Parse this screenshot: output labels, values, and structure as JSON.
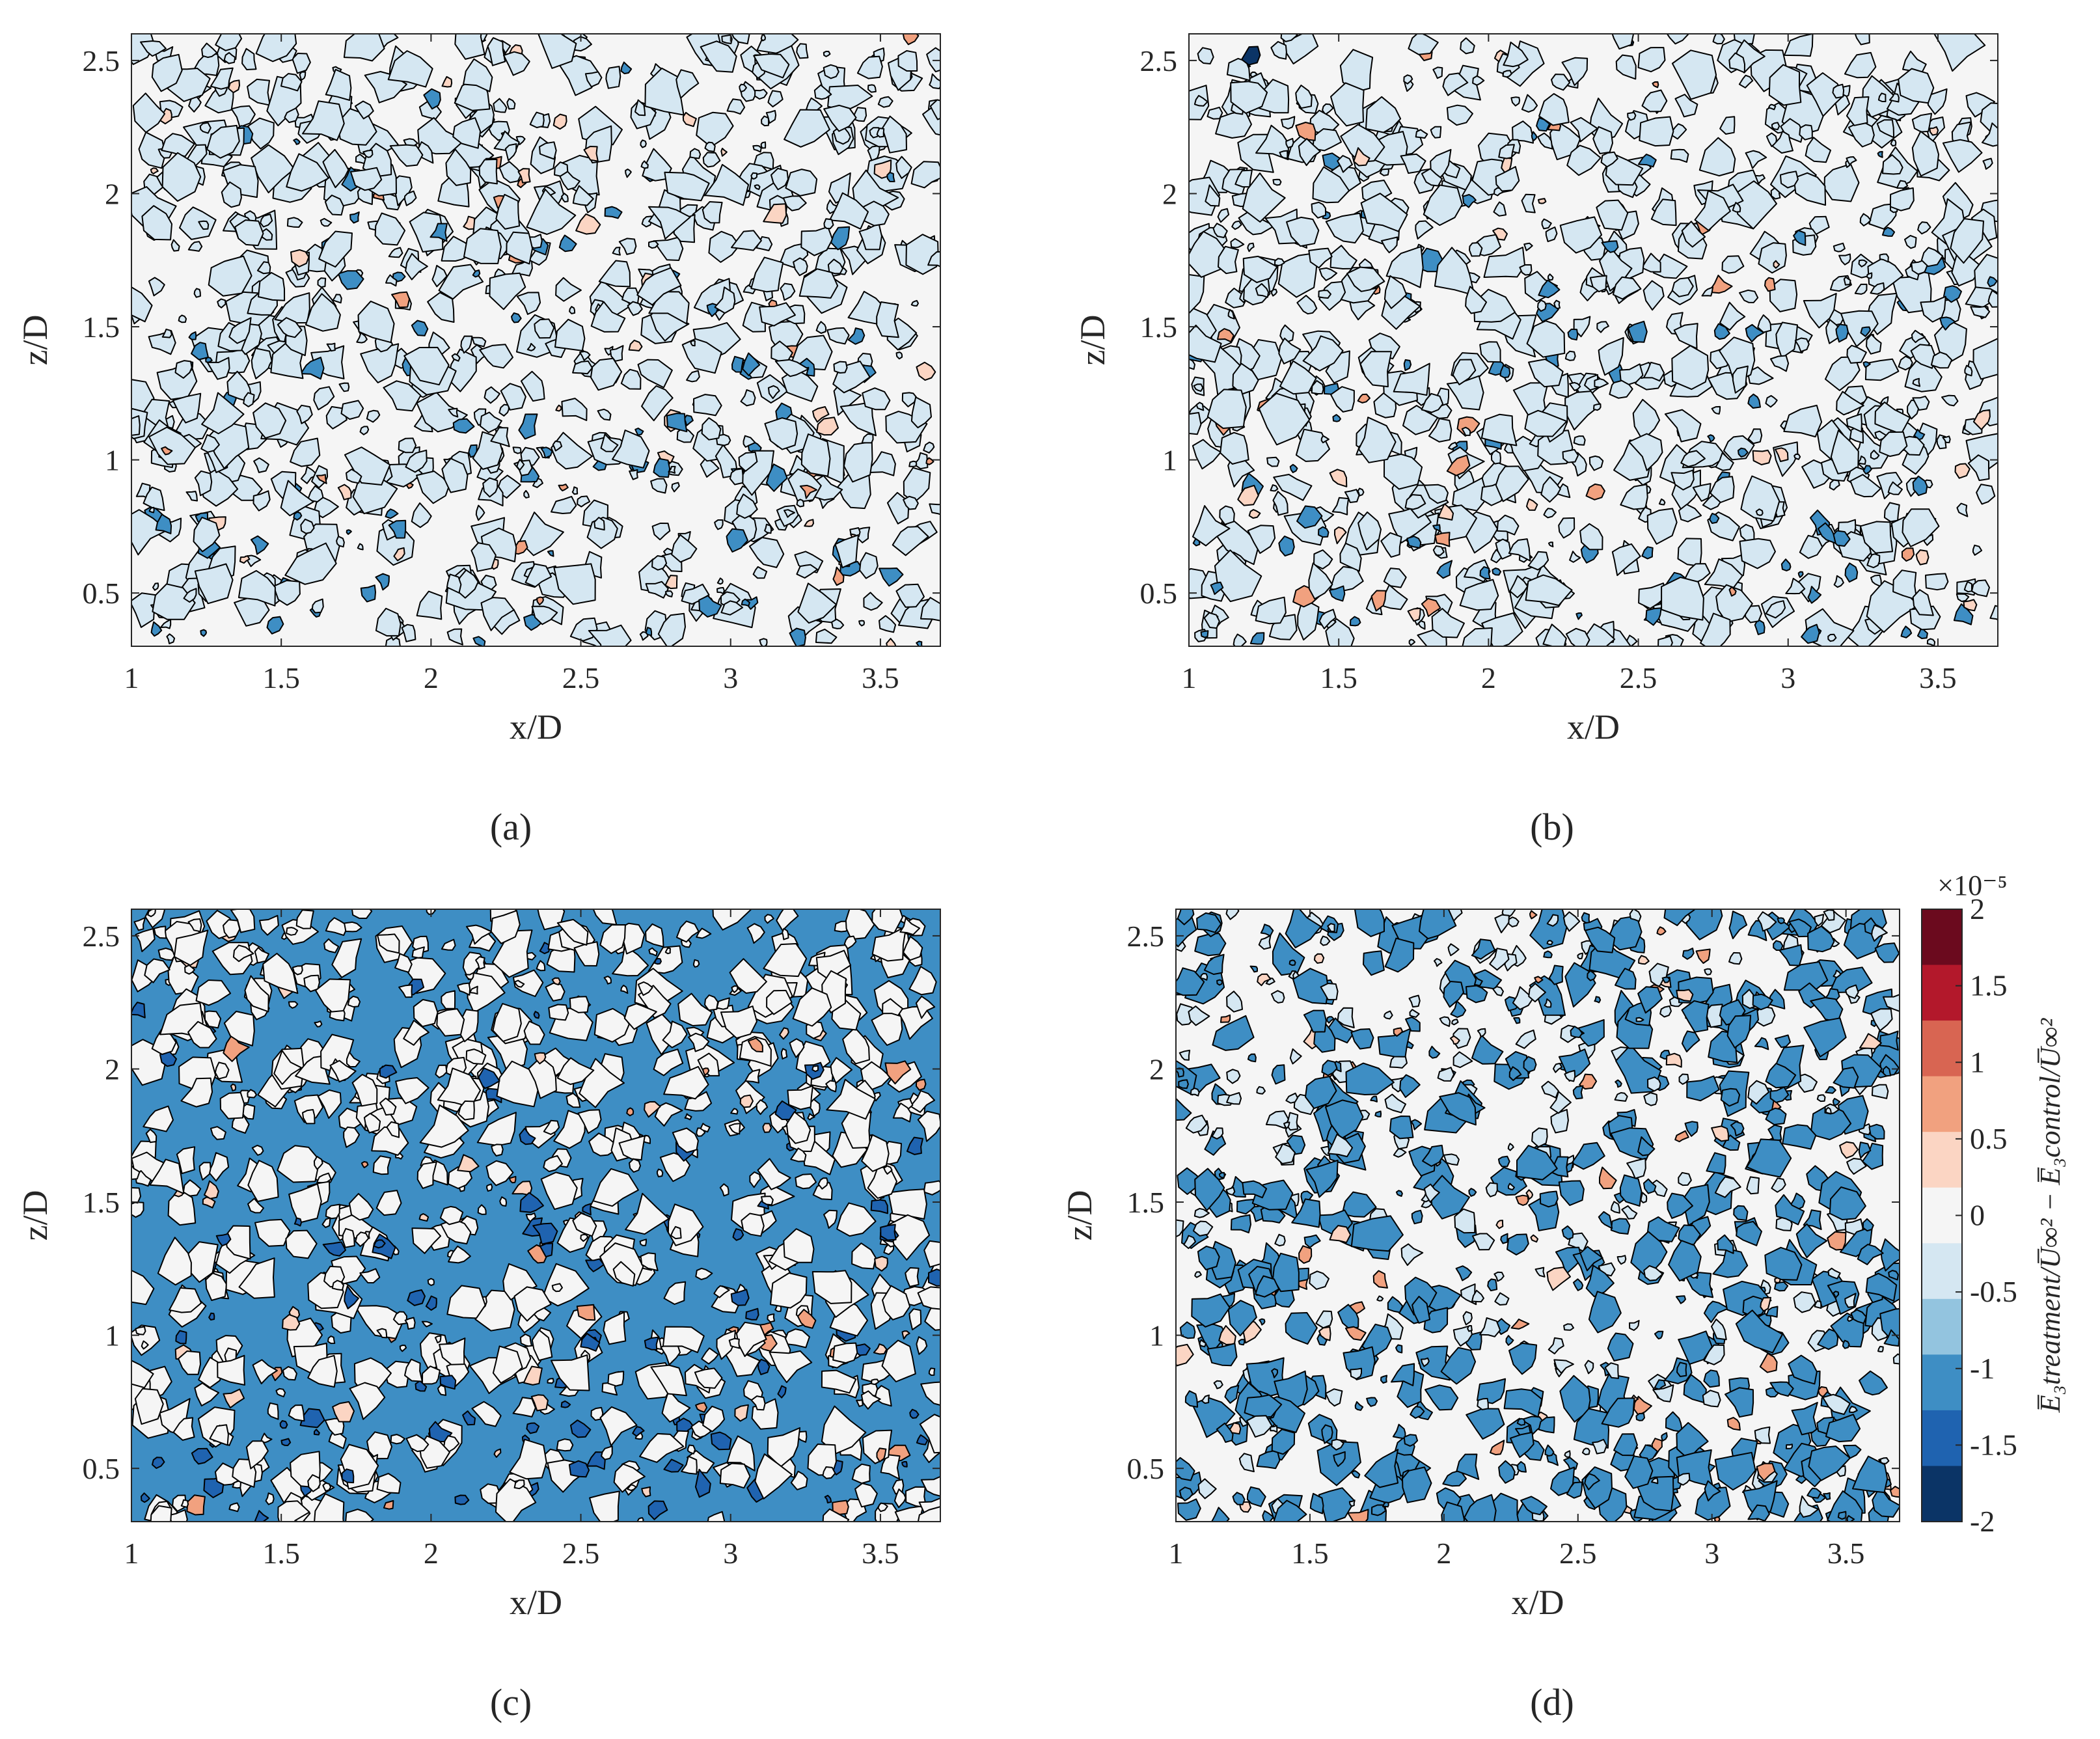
{
  "figure": {
    "panel_labels": [
      "(a)",
      "(b)",
      "(c)",
      "(d)"
    ]
  },
  "colormap": {
    "levels": [
      -2,
      -1.5,
      -1,
      -0.5,
      0,
      0.5,
      1,
      1.5,
      2
    ],
    "colors": [
      "#0b3466",
      "#1f63b0",
      "#3e8ec4",
      "#93c4df",
      "#d5e7f2",
      "#f5f5f5",
      "#fbd5c3",
      "#f1a17f",
      "#d86552",
      "#b3182b",
      "#6b0a1e"
    ],
    "contour_color": "#000000"
  },
  "colorbar": {
    "ticks": [
      "2",
      "1.5",
      "1",
      "0.5",
      "0",
      "-0.5",
      "-1",
      "-1.5",
      "-2"
    ],
    "exponent": "×10⁻⁵",
    "label": "E̅₃treatment/U̅∞² − E̅₃control/U̅∞²"
  },
  "chart_data": [
    {
      "type": "heatmap",
      "panel": "(a)",
      "xlabel": "x/D",
      "ylabel": "z/D",
      "xlim": [
        1,
        3.7
      ],
      "ylim": [
        0.3,
        2.6
      ],
      "xticks": [
        1,
        1.5,
        2,
        2.5,
        3,
        3.5
      ],
      "yticks": [
        0.5,
        1,
        1.5,
        2,
        2.5
      ],
      "value_range": [
        -2e-05,
        2e-05
      ],
      "description_values": {
        "dominant_level": 0,
        "secondary_level": -0.5
      }
    },
    {
      "type": "heatmap",
      "panel": "(b)",
      "xlabel": "x/D",
      "ylabel": "z/D",
      "xlim": [
        1,
        3.7
      ],
      "ylim": [
        0.3,
        2.6
      ],
      "xticks": [
        1,
        1.5,
        2,
        2.5,
        3,
        3.5
      ],
      "yticks": [
        0.5,
        1,
        1.5,
        2,
        2.5
      ],
      "value_range": [
        -2e-05,
        2e-05
      ],
      "description_values": {
        "dominant_level": 0,
        "secondary_level": -0.5
      }
    },
    {
      "type": "heatmap",
      "panel": "(c)",
      "xlabel": "x/D",
      "ylabel": "z/D",
      "xlim": [
        1,
        3.7
      ],
      "ylim": [
        0.3,
        2.6
      ],
      "xticks": [
        1,
        1.5,
        2,
        2.5,
        3,
        3.5
      ],
      "yticks": [
        0.5,
        1,
        1.5,
        2,
        2.5
      ],
      "value_range": [
        -2e-05,
        2e-05
      ],
      "description_values": {
        "dominant_level": -1,
        "secondary_level": 0
      }
    },
    {
      "type": "heatmap",
      "panel": "(d)",
      "xlabel": "x/D",
      "ylabel": "z/D",
      "xlim": [
        1,
        3.7
      ],
      "ylim": [
        0.3,
        2.6
      ],
      "xticks": [
        1,
        1.5,
        2,
        2.5,
        3,
        3.5
      ],
      "yticks": [
        0.5,
        1,
        1.5,
        2,
        2.5
      ],
      "value_range": [
        -2e-05,
        2e-05
      ],
      "description_values": {
        "dominant_level": 0,
        "secondary_level": -1
      }
    }
  ]
}
